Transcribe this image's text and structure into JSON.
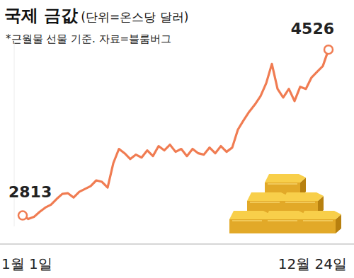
{
  "chart_data": {
    "type": "line",
    "title": "국제 금값",
    "subtitle": "(단위=온스당 달러)",
    "annotations": [
      "*근월물 선물 기준. 자료=블룸버그"
    ],
    "categories": [
      "1월 1일",
      null,
      null,
      null,
      null,
      null,
      null,
      null,
      null,
      null,
      null,
      null,
      null,
      null,
      null,
      null,
      null,
      null,
      null,
      null,
      null,
      null,
      null,
      null,
      null,
      null,
      null,
      null,
      null,
      null,
      null,
      null,
      null,
      null,
      null,
      null,
      null,
      null,
      null,
      null,
      null,
      null,
      null,
      null,
      null,
      null,
      null,
      null,
      null,
      null,
      null,
      null,
      null,
      null,
      "12월 24일"
    ],
    "values": [
      2813,
      2776,
      2798,
      2850,
      2894,
      2924,
      2983,
      3035,
      3042,
      2998,
      3057,
      3086,
      3116,
      3175,
      3160,
      3101,
      3352,
      3500,
      3455,
      3396,
      3441,
      3411,
      3485,
      3426,
      3529,
      3485,
      3544,
      3470,
      3500,
      3426,
      3500,
      3455,
      3441,
      3514,
      3455,
      3529,
      3470,
      3514,
      3699,
      3795,
      3884,
      3958,
      4046,
      4179,
      4378,
      4120,
      4031,
      4120,
      3994,
      4142,
      4120,
      4238,
      4297,
      4356,
      4526
    ],
    "value_labels": [
      "2813",
      null,
      null,
      null,
      null,
      null,
      null,
      null,
      null,
      null,
      null,
      null,
      null,
      null,
      null,
      null,
      null,
      null,
      null,
      null,
      null,
      null,
      null,
      null,
      null,
      null,
      null,
      null,
      null,
      null,
      null,
      null,
      null,
      null,
      null,
      null,
      null,
      null,
      null,
      null,
      null,
      null,
      null,
      null,
      null,
      null,
      null,
      null,
      null,
      null,
      null,
      null,
      null,
      null,
      "4526"
    ],
    "data_labels": true,
    "color": "#f07c52",
    "marker": "circle",
    "ylim": [
      2700,
      4600
    ],
    "yticks": [],
    "tick_labels": "x",
    "grid": false
  }
}
